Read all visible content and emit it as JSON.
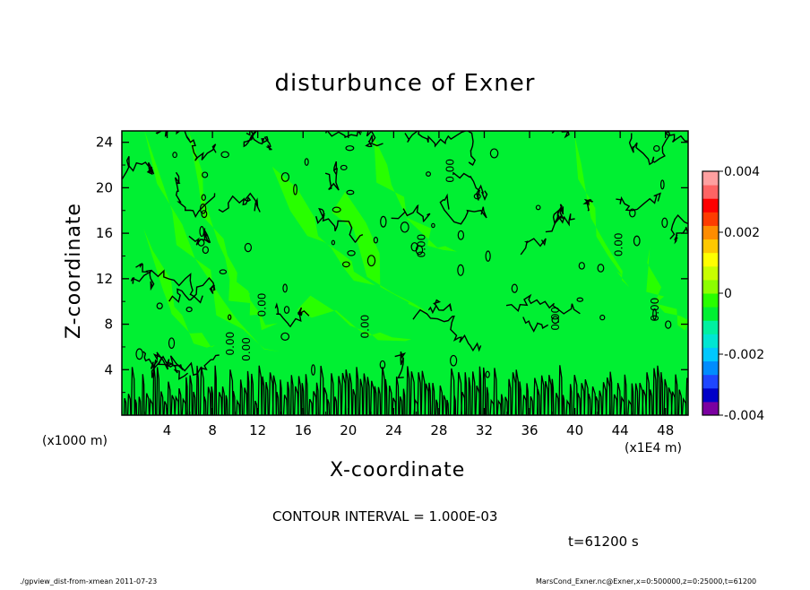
{
  "chart_data": {
    "type": "contour",
    "title": "disturbunce of Exner",
    "xlabel": "X-coordinate",
    "ylabel": "Z-coordinate",
    "x_unit": "(x1E4 m)",
    "y_unit": "(x1000 m)",
    "xlim": [
      0,
      50
    ],
    "ylim": [
      0,
      25
    ],
    "x_ticks": [
      4,
      8,
      12,
      16,
      20,
      24,
      28,
      32,
      36,
      40,
      44,
      48
    ],
    "y_ticks": [
      4,
      8,
      12,
      16,
      20,
      24
    ],
    "colorbar": {
      "range": [
        -0.004,
        0.004
      ],
      "tick_labels": [
        "0.004",
        "0.002",
        "0",
        "-0.002",
        "-0.004"
      ],
      "tick_values": [
        0.004,
        0.002,
        0,
        -0.002,
        -0.004
      ],
      "colors_bottom_to_top": [
        "#7b00a0",
        "#0000c8",
        "#1e46ff",
        "#008cff",
        "#00c8ff",
        "#00e6d2",
        "#00f0a0",
        "#00f032",
        "#28ff00",
        "#8cff00",
        "#c8ff00",
        "#ffff00",
        "#ffc800",
        "#ff8c00",
        "#ff3c00",
        "#ff0000",
        "#ff6464",
        "#ffa0a0"
      ]
    },
    "contour_interval": "CONTOUR INTERVAL = 1.000E-03",
    "contour_labels": [
      {
        "text": "0.00",
        "x": 9.9,
        "z": 6.3
      },
      {
        "text": "0.00",
        "x": 11.3,
        "z": 5.8
      },
      {
        "text": "0.00",
        "x": 12.7,
        "z": 9.7
      },
      {
        "text": "0.00",
        "x": 21.8,
        "z": 7.8
      },
      {
        "text": "0.00",
        "x": 26.8,
        "z": 14.9
      },
      {
        "text": "0.00",
        "x": 29.3,
        "z": 21.5
      },
      {
        "text": "0.00",
        "x": 38.6,
        "z": 8.5
      },
      {
        "text": "0.00",
        "x": 44.2,
        "z": 15.0
      },
      {
        "text": "0.00",
        "x": 47.4,
        "z": 9.3
      }
    ],
    "dominant_value": 0,
    "colors": {
      "background_field": "#00f032",
      "positive_patches": "#28ff00"
    }
  },
  "time_label": "t=61200 s",
  "footer": {
    "left": "./gpview_dist-from-xmean   2011-07-23",
    "right": "MarsCond_Exner.nc@Exner,x=0:500000,z=0:25000,t=61200"
  }
}
